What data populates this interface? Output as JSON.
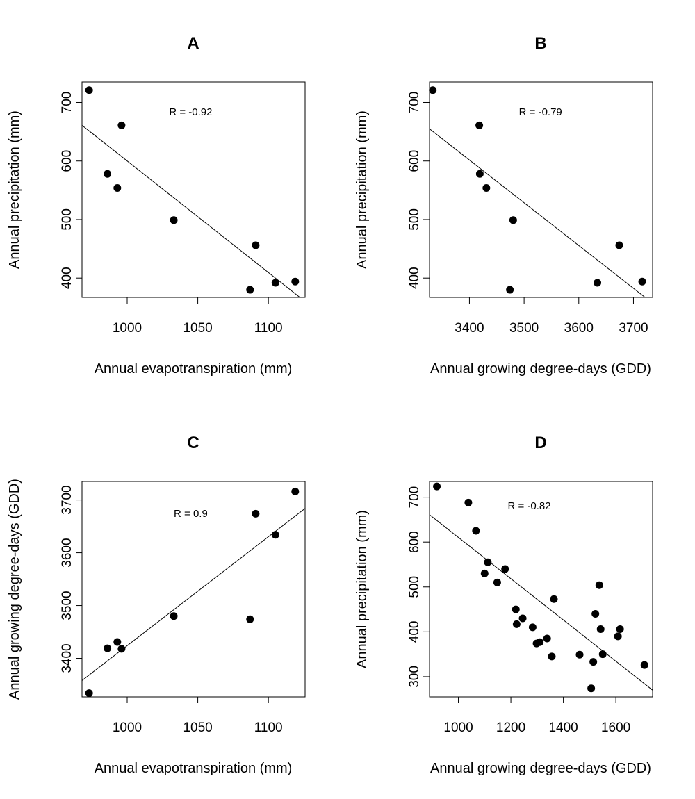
{
  "style": {
    "point_color": "#000000",
    "line_color": "#000000",
    "background": "#ffffff"
  },
  "chart_data": [
    {
      "type": "scatter",
      "title": "A",
      "xlabel": "Annual evapotranspiration (mm)",
      "ylabel": "Annual precipitation (mm)",
      "xlim": [
        968,
        1126
      ],
      "ylim": [
        367,
        735
      ],
      "xticks": [
        1000,
        1050,
        1100
      ],
      "yticks": [
        400,
        500,
        600,
        700
      ],
      "annotation": "R =  -0.92",
      "annotation_at": [
        1045,
        678
      ],
      "points": [
        [
          973,
          721
        ],
        [
          996,
          661
        ],
        [
          986,
          578
        ],
        [
          993,
          554
        ],
        [
          1033,
          499
        ],
        [
          1091,
          456
        ],
        [
          1087,
          380
        ],
        [
          1105,
          392
        ],
        [
          1119,
          394
        ]
      ],
      "fit_line": [
        [
          968,
          661
        ],
        [
          1126,
          360
        ]
      ],
      "grid": false
    },
    {
      "type": "scatter",
      "title": "B",
      "xlabel": "Annual growing degree-days (GDD)",
      "ylabel": "Annual precipitation (mm)",
      "xlim": [
        3327,
        3735
      ],
      "ylim": [
        367,
        735
      ],
      "xticks": [
        3400,
        3500,
        3600,
        3700
      ],
      "yticks": [
        400,
        500,
        600,
        700
      ],
      "annotation": "R =  -0.79",
      "annotation_at": [
        3530,
        678
      ],
      "points": [
        [
          3333,
          721
        ],
        [
          3418,
          661
        ],
        [
          3419,
          578
        ],
        [
          3431,
          554
        ],
        [
          3480,
          499
        ],
        [
          3474,
          380
        ],
        [
          3674,
          456
        ],
        [
          3634,
          392
        ],
        [
          3716,
          394
        ]
      ],
      "fit_line": [
        [
          3327,
          655
        ],
        [
          3735,
          357
        ]
      ],
      "grid": false
    },
    {
      "type": "scatter",
      "title": "C",
      "xlabel": "Annual evapotranspiration (mm)",
      "ylabel": "Annual growing degree-days (GDD)",
      "xlim": [
        968,
        1126
      ],
      "ylim": [
        3327,
        3735
      ],
      "xticks": [
        1000,
        1050,
        1100
      ],
      "yticks": [
        3400,
        3500,
        3600,
        3700
      ],
      "annotation": "R =  0.9",
      "annotation_at": [
        1045,
        3668
      ],
      "points": [
        [
          973,
          3334
        ],
        [
          986,
          3419
        ],
        [
          993,
          3431
        ],
        [
          996,
          3418
        ],
        [
          1033,
          3480
        ],
        [
          1087,
          3474
        ],
        [
          1091,
          3674
        ],
        [
          1105,
          3634
        ],
        [
          1119,
          3716
        ]
      ],
      "fit_line": [
        [
          968,
          3358
        ],
        [
          1126,
          3684
        ]
      ],
      "grid": false
    },
    {
      "type": "scatter",
      "title": "D",
      "xlabel": "Annual growing degree-days (GDD)",
      "ylabel": "Annual precipitation (mm)",
      "xlim": [
        890,
        1740
      ],
      "ylim": [
        255,
        735
      ],
      "xticks": [
        1000,
        1200,
        1400,
        1600
      ],
      "yticks": [
        300,
        400,
        500,
        600,
        700
      ],
      "annotation": "R =  -0.82",
      "annotation_at": [
        1270,
        673
      ],
      "points": [
        [
          918,
          724
        ],
        [
          1038,
          688
        ],
        [
          1067,
          625
        ],
        [
          1100,
          530
        ],
        [
          1112,
          555
        ],
        [
          1148,
          510
        ],
        [
          1178,
          540
        ],
        [
          1219,
          450
        ],
        [
          1222,
          417
        ],
        [
          1245,
          430
        ],
        [
          1283,
          410
        ],
        [
          1298,
          374
        ],
        [
          1310,
          377
        ],
        [
          1338,
          385
        ],
        [
          1356,
          345
        ],
        [
          1364,
          473
        ],
        [
          1462,
          349
        ],
        [
          1506,
          274
        ],
        [
          1514,
          333
        ],
        [
          1522,
          440
        ],
        [
          1537,
          504
        ],
        [
          1542,
          406
        ],
        [
          1550,
          350
        ],
        [
          1608,
          390
        ],
        [
          1616,
          406
        ],
        [
          1709,
          326
        ]
      ],
      "fit_line": [
        [
          890,
          661
        ],
        [
          1740,
          270
        ]
      ],
      "grid": false
    }
  ]
}
